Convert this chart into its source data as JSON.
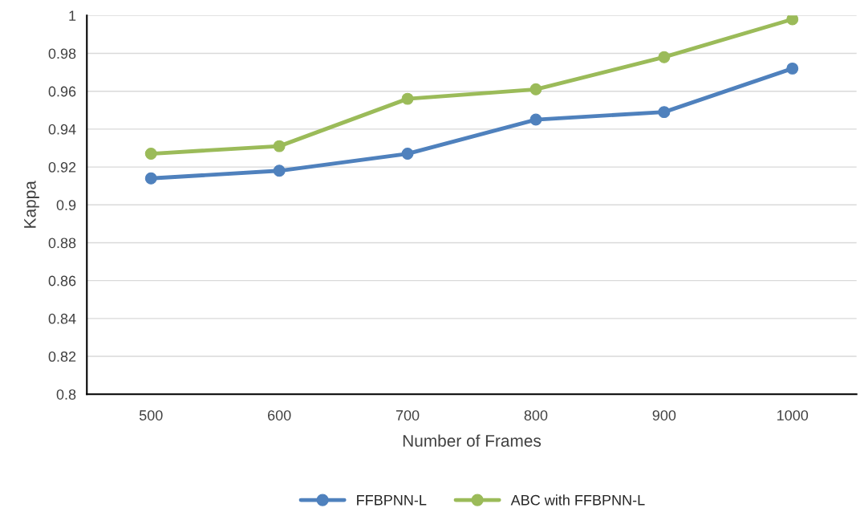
{
  "chart_data": {
    "type": "line",
    "xlabel": "Number of Frames",
    "ylabel": "Kappa",
    "categories": [
      "500",
      "600",
      "700",
      "800",
      "900",
      "1000"
    ],
    "series": [
      {
        "name": "FFBPNN-L",
        "color": "#4f81bd",
        "values": [
          0.914,
          0.918,
          0.927,
          0.945,
          0.949,
          0.972
        ]
      },
      {
        "name": "ABC with FFBPNN-L",
        "color": "#9bbb59",
        "values": [
          0.927,
          0.931,
          0.956,
          0.961,
          0.978,
          0.998
        ]
      }
    ],
    "ylim": [
      0.8,
      1
    ],
    "yticks": [
      0.8,
      0.82,
      0.84,
      0.86,
      0.88,
      0.9,
      0.92,
      0.94,
      0.96,
      0.98,
      1
    ],
    "grid": "y",
    "legend": "bottom",
    "marker": "circle",
    "line_style": "solid"
  }
}
